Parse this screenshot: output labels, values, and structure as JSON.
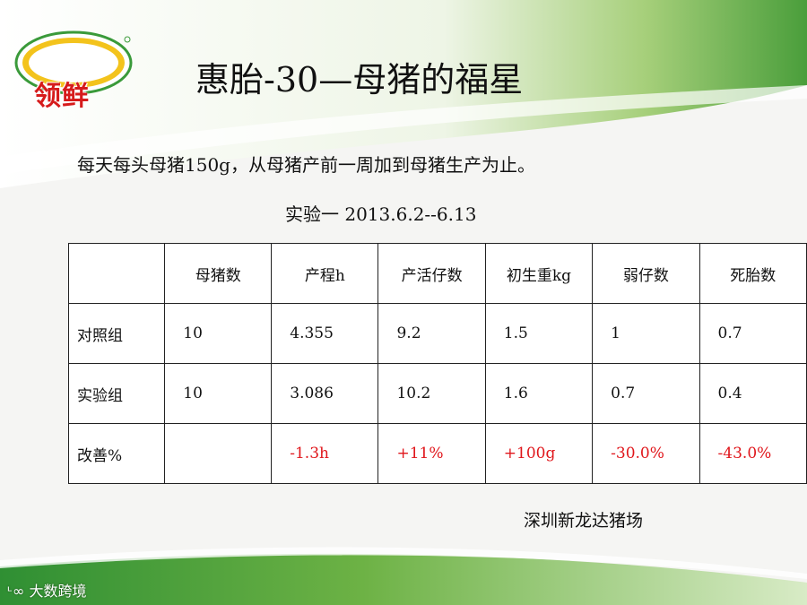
{
  "logo": {
    "text": "领鲜"
  },
  "title": "惠胎-30—母猪的福星",
  "intro": "每天每头母猪150g，从母猪产前一周加到母猪生产为止。",
  "experiment": "实验一    2013.6.2--6.13",
  "table": {
    "headers": [
      "",
      "母猪数",
      "产程h",
      "产活仔数",
      "初生重kg",
      "弱仔数",
      "死胎数"
    ],
    "rows": [
      [
        "对照组",
        "10",
        "4.355",
        "9.2",
        "1.5",
        "1",
        "0.7"
      ],
      [
        "实验组",
        "10",
        "3.086",
        "10.2",
        "1.6",
        "0.7",
        "0.4"
      ],
      [
        "改善%",
        "",
        "-1.3h",
        "+11%",
        "+100g",
        "-30.0%",
        "-43.0%"
      ]
    ]
  },
  "source": "深圳新龙达猪场",
  "watermark": "大数跨境",
  "colors": {
    "green": "#2f9a3a",
    "light_green": "#8cc63f",
    "highlight_red": "#e0161b"
  }
}
